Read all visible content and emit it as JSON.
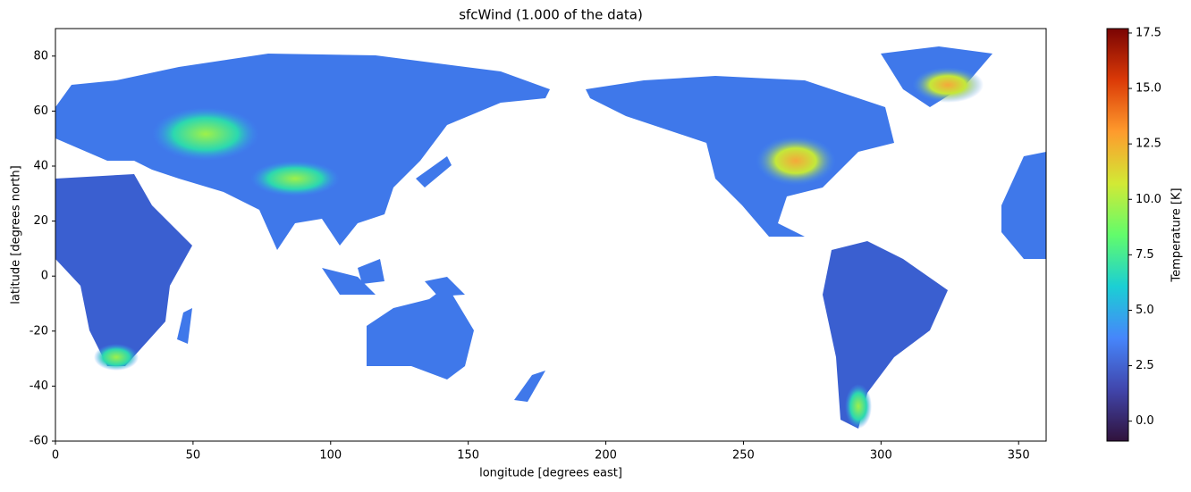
{
  "chart_data": {
    "type": "map",
    "title": "sfcWind (1.000 of the data)",
    "x_label": "longitude [degrees east]",
    "y_label": "latitude [degrees north]",
    "xlim": [
      0,
      360
    ],
    "ylim": [
      -60,
      90
    ],
    "xticks": [
      0,
      50,
      100,
      150,
      200,
      250,
      300,
      350
    ],
    "yticks": [
      -60,
      -40,
      -20,
      0,
      20,
      40,
      60,
      80
    ],
    "colorbar": {
      "label": "Temperature [K]",
      "lim": [
        -0.9,
        17.7
      ],
      "ticks": [
        {
          "value": 0,
          "label": "0.0"
        },
        {
          "value": 2.5,
          "label": "2.5"
        },
        {
          "value": 5,
          "label": "5.0"
        },
        {
          "value": 7.5,
          "label": "7.5"
        },
        {
          "value": 10,
          "label": "10.0"
        },
        {
          "value": 12.5,
          "label": "12.5"
        },
        {
          "value": 15,
          "label": "15.0"
        },
        {
          "value": 17.5,
          "label": "17.5"
        }
      ],
      "colors": [
        "#30123b",
        "#4146ac",
        "#4686fb",
        "#1bcfd4",
        "#62fc6b",
        "#d2e935",
        "#fe9b2d",
        "#db3a07",
        "#7a0403"
      ]
    }
  }
}
